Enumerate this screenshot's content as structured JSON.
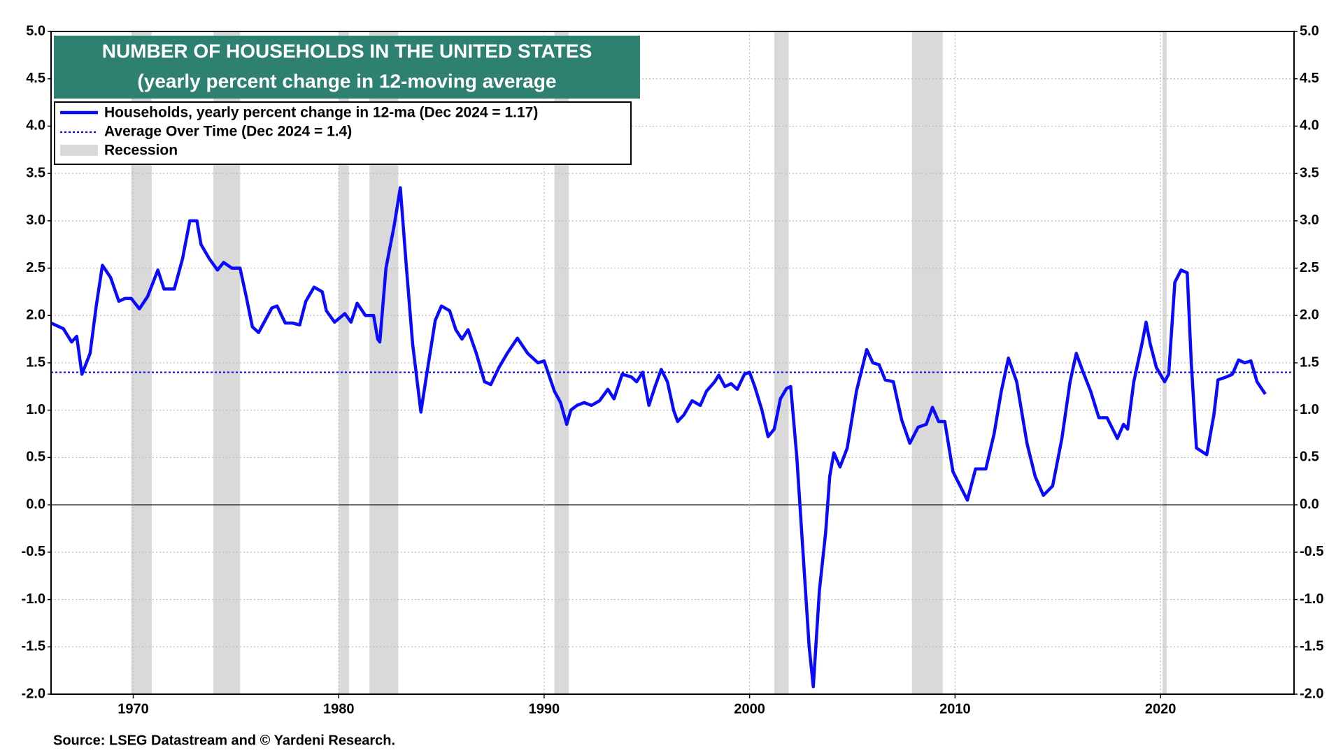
{
  "chart_data": {
    "type": "line",
    "title": "NUMBER OF HOUSEHOLDS IN THE UNITED STATES",
    "subtitle": "(yearly percent change in 12-moving average",
    "source": "Source: LSEG Datastream and © Yardeni Research.",
    "title_color": "#2e8070",
    "x": [
      1966.0,
      1966.6,
      1967.0,
      1967.25,
      1967.5,
      1967.9,
      1968.2,
      1968.5,
      1968.9,
      1969.3,
      1969.6,
      1969.9,
      1970.3,
      1970.7,
      1971.2,
      1971.5,
      1972.0,
      1972.4,
      1972.75,
      1973.1,
      1973.3,
      1973.7,
      1974.1,
      1974.4,
      1974.8,
      1975.2,
      1975.5,
      1975.8,
      1976.1,
      1976.5,
      1976.75,
      1977.0,
      1977.4,
      1977.75,
      1978.1,
      1978.4,
      1978.8,
      1979.2,
      1979.4,
      1979.8,
      1980.3,
      1980.6,
      1980.9,
      1981.3,
      1981.7,
      1981.9,
      1982.0,
      1982.3,
      1982.7,
      1983.0,
      1983.3,
      1983.6,
      1984.0,
      1984.3,
      1984.7,
      1985.0,
      1985.4,
      1985.7,
      1986.0,
      1986.3,
      1986.7,
      1987.1,
      1987.4,
      1987.8,
      1988.2,
      1988.7,
      1989.2,
      1989.7,
      1990.0,
      1990.5,
      1990.8,
      1991.1,
      1991.3,
      1991.6,
      1991.95,
      1992.3,
      1992.7,
      1993.1,
      1993.4,
      1993.8,
      1994.25,
      1994.5,
      1994.8,
      1995.1,
      1995.4,
      1995.7,
      1996.0,
      1996.3,
      1996.5,
      1996.8,
      1997.2,
      1997.6,
      1997.9,
      1998.3,
      1998.5,
      1998.8,
      1999.1,
      1999.4,
      1999.75,
      2000.0,
      2000.25,
      2000.6,
      2000.9,
      2001.2,
      2001.5,
      2001.8,
      2002.0,
      2002.3,
      2002.6,
      2002.9,
      2003.1,
      2003.4,
      2003.7,
      2003.9,
      2004.1,
      2004.4,
      2004.75,
      2005.2,
      2005.7,
      2006.0,
      2006.3,
      2006.6,
      2007.0,
      2007.4,
      2007.8,
      2008.2,
      2008.6,
      2008.9,
      2009.2,
      2009.5,
      2009.9,
      2010.2,
      2010.6,
      2011.0,
      2011.5,
      2011.9,
      2012.25,
      2012.6,
      2013.0,
      2013.5,
      2013.9,
      2014.3,
      2014.75,
      2015.2,
      2015.6,
      2015.9,
      2016.2,
      2016.6,
      2017.0,
      2017.4,
      2017.9,
      2018.2,
      2018.4,
      2018.7,
      2019.1,
      2019.3,
      2019.5,
      2019.8,
      2020.2,
      2020.4,
      2020.7,
      2021.0,
      2021.3,
      2021.5,
      2021.75,
      2022.25,
      2022.6,
      2022.8,
      2023.2,
      2023.5,
      2023.8,
      2024.1,
      2024.4,
      2024.7,
      2025.1
    ],
    "series": [
      {
        "name": "Households, yearly percent change in 12-ma (Dec 2024 = 1.17)",
        "color": "#0a0aff",
        "values": [
          1.92,
          1.86,
          1.72,
          1.78,
          1.38,
          1.6,
          2.1,
          2.53,
          2.4,
          2.15,
          2.18,
          2.18,
          2.07,
          2.2,
          2.48,
          2.28,
          2.28,
          2.6,
          3.0,
          3.0,
          2.75,
          2.6,
          2.48,
          2.56,
          2.5,
          2.5,
          2.2,
          1.88,
          1.82,
          1.98,
          2.08,
          2.1,
          1.92,
          1.92,
          1.9,
          2.15,
          2.3,
          2.25,
          2.05,
          1.93,
          2.02,
          1.93,
          2.13,
          2.0,
          2.0,
          1.75,
          1.72,
          2.5,
          2.95,
          3.35,
          2.5,
          1.7,
          0.98,
          1.4,
          1.95,
          2.1,
          2.05,
          1.85,
          1.75,
          1.85,
          1.6,
          1.3,
          1.27,
          1.45,
          1.6,
          1.76,
          1.6,
          1.5,
          1.52,
          1.2,
          1.08,
          0.85,
          1.0,
          1.05,
          1.08,
          1.05,
          1.1,
          1.22,
          1.12,
          1.38,
          1.35,
          1.3,
          1.4,
          1.05,
          1.25,
          1.43,
          1.3,
          1.0,
          0.88,
          0.95,
          1.1,
          1.05,
          1.2,
          1.3,
          1.37,
          1.25,
          1.28,
          1.22,
          1.38,
          1.4,
          1.25,
          1.0,
          0.72,
          0.8,
          1.12,
          1.23,
          1.25,
          0.5,
          -0.5,
          -1.5,
          -1.92,
          -0.9,
          -0.3,
          0.3,
          0.55,
          0.4,
          0.6,
          1.2,
          1.64,
          1.5,
          1.48,
          1.32,
          1.3,
          0.9,
          0.65,
          0.82,
          0.85,
          1.03,
          0.88,
          0.88,
          0.35,
          0.22,
          0.05,
          0.38,
          0.38,
          0.75,
          1.2,
          1.55,
          1.3,
          0.65,
          0.3,
          0.1,
          0.2,
          0.7,
          1.3,
          1.6,
          1.42,
          1.2,
          0.92,
          0.92,
          0.7,
          0.85,
          0.8,
          1.3,
          1.7,
          1.93,
          1.7,
          1.45,
          1.3,
          1.38,
          2.35,
          2.48,
          2.45,
          1.5,
          0.6,
          0.53,
          0.95,
          1.32,
          1.35,
          1.38,
          1.53,
          1.5,
          1.52,
          1.3,
          1.17
        ]
      }
    ],
    "average": {
      "name": "Average Over Time (Dec 2024 = 1.4)",
      "value": 1.4,
      "color": "#0a0aff"
    },
    "recessions": {
      "name": "Recession",
      "color": "#d9d9d9",
      "ranges": [
        [
          1969.9,
          1970.9
        ],
        [
          1973.9,
          1975.2
        ],
        [
          1980.0,
          1980.5
        ],
        [
          1981.5,
          1982.9
        ],
        [
          1990.5,
          1991.2
        ],
        [
          2001.2,
          2001.9
        ],
        [
          2007.9,
          2009.4
        ],
        [
          2020.1,
          2020.3
        ]
      ]
    },
    "xlim": [
      1966,
      2026.5
    ],
    "xticks": [
      1970,
      1980,
      1990,
      2000,
      2010,
      2020
    ],
    "ylim": [
      -2,
      5
    ],
    "yticks": [
      {
        "value": -2,
        "label": "-2.0"
      },
      -1.5,
      {
        "value": -1,
        "label": "-1.0"
      },
      -0.5,
      {
        "value": 0,
        "label": "0.0"
      },
      0.5,
      {
        "value": 1,
        "label": "1.0"
      },
      1.5,
      {
        "value": 2,
        "label": "2.0"
      },
      2.5,
      {
        "value": 3,
        "label": "3.0"
      },
      3.5,
      {
        "value": 4,
        "label": "4.0"
      },
      4.5,
      {
        "value": 5,
        "label": "5.0"
      }
    ],
    "y2lim": [
      -2,
      5
    ],
    "y2ticks": [
      {
        "value": -2,
        "label": "-2.0"
      },
      -1.5,
      {
        "value": -1,
        "label": "-1.0"
      },
      -0.5,
      {
        "value": 0,
        "label": "0.0"
      },
      0.5,
      {
        "value": 1,
        "label": "1.0"
      },
      1.5,
      {
        "value": 2,
        "label": "2.0"
      },
      2.5,
      {
        "value": 3,
        "label": "3.0"
      },
      3.5,
      {
        "value": 4,
        "label": "4.0"
      },
      4.5,
      {
        "value": 5,
        "label": "5.0"
      }
    ],
    "grid": true
  }
}
